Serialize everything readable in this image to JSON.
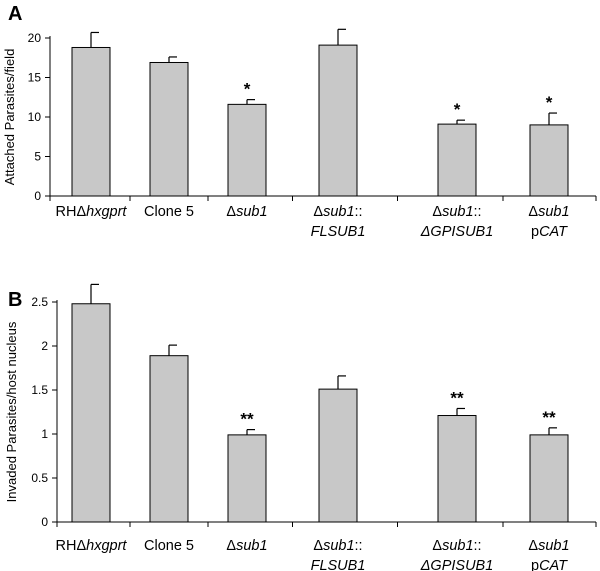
{
  "chart_data": [
    {
      "type": "bar",
      "panel": "A",
      "ylabel": "Attached Parasites/field",
      "ylim": [
        0,
        20
      ],
      "yticks": [
        0,
        5,
        10,
        15,
        20
      ],
      "categories": [
        {
          "prefix": "RHΔ",
          "italic": "hxgprt",
          "line2": ""
        },
        {
          "prefix": "Clone 5",
          "italic": "",
          "line2": ""
        },
        {
          "prefix": "Δ",
          "italic": "sub1",
          "line2": ""
        },
        {
          "prefix": "Δ",
          "italic": "sub1",
          "suffix": "::",
          "line2": "FLSUB1",
          "line2_italic": true
        },
        {
          "prefix": "Δ",
          "italic": "sub1",
          "suffix": "::",
          "line2": "ΔGPISUB1",
          "line2_italic": true
        },
        {
          "prefix": "Δ",
          "italic": "sub1",
          "suffix": "",
          "line2_prefix": "p",
          "line2": "CAT",
          "line2_italic": true
        }
      ],
      "values": [
        18.8,
        16.9,
        11.6,
        19.1,
        9.1,
        9.0
      ],
      "errors": [
        1.9,
        0.7,
        0.6,
        2.0,
        0.5,
        1.5
      ],
      "significance": [
        "",
        "",
        "*",
        "",
        "*",
        "*"
      ]
    },
    {
      "type": "bar",
      "panel": "B",
      "ylabel": "Invaded  Parasites/host nucleus",
      "ylim": [
        0,
        2.5
      ],
      "yticks": [
        "0",
        "0.5",
        "1",
        "1.5",
        "2",
        "2.5"
      ],
      "categories": [
        {
          "prefix": "RHΔ",
          "italic": "hxgprt",
          "line2": ""
        },
        {
          "prefix": "Clone 5",
          "italic": "",
          "line2": ""
        },
        {
          "prefix": "Δ",
          "italic": "sub1",
          "line2": ""
        },
        {
          "prefix": "Δ",
          "italic": "sub1",
          "suffix": "::",
          "line2": "FLSUB1",
          "line2_italic": true
        },
        {
          "prefix": "Δ",
          "italic": "sub1",
          "suffix": "::",
          "line2": "ΔGPISUB1",
          "line2_italic": true
        },
        {
          "prefix": "Δ",
          "italic": "sub1",
          "suffix": "",
          "line2_prefix": "p",
          "line2": "CAT",
          "line2_italic": true
        }
      ],
      "values": [
        2.48,
        1.89,
        0.99,
        1.51,
        1.21,
        0.99
      ],
      "errors": [
        0.22,
        0.12,
        0.06,
        0.15,
        0.08,
        0.08
      ],
      "significance": [
        "",
        "",
        "**",
        "",
        "**",
        "**"
      ]
    }
  ],
  "colors": {
    "bar": "#c8c8c8",
    "stroke": "#000000"
  }
}
